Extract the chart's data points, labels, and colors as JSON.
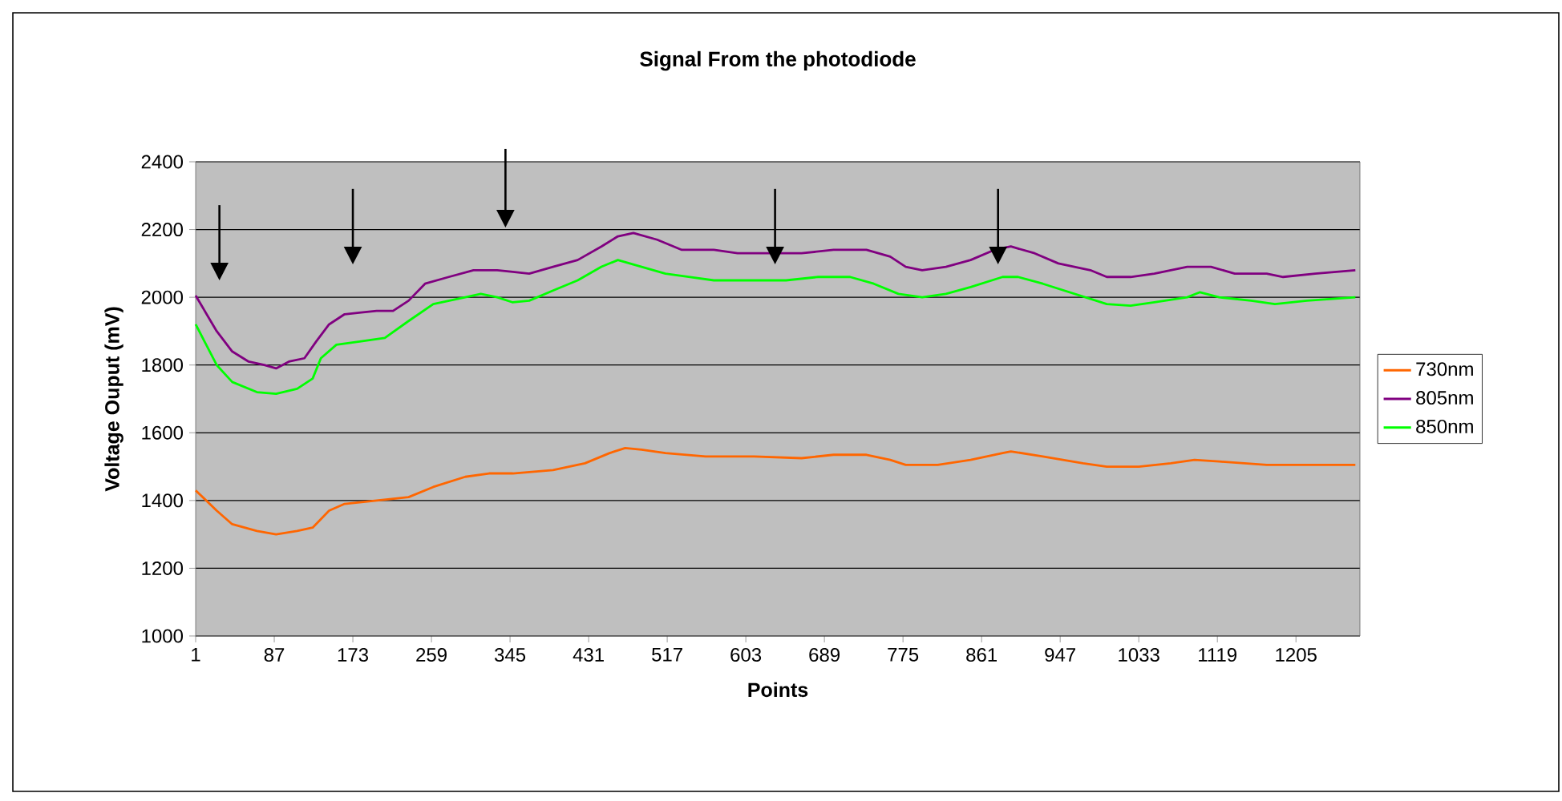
{
  "chart_data": {
    "type": "line",
    "title": "Signal From the photodiode",
    "xlabel": "Points",
    "ylabel": "Voltage Ouput (mV)",
    "xlim": [
      1,
      1275
    ],
    "xticks": [
      1,
      87,
      173,
      259,
      345,
      431,
      517,
      603,
      689,
      775,
      861,
      947,
      1033,
      1119,
      1205
    ],
    "ylim": [
      1000,
      2400
    ],
    "yticks": [
      1000,
      1200,
      1400,
      1600,
      1800,
      2000,
      2200,
      2400
    ],
    "grid": "y",
    "legend": "right",
    "line_style": "solid",
    "series": [
      {
        "name": "730nm",
        "color": "#ff6600",
        "x": [
          1,
          24,
          41,
          68,
          89,
          112,
          129,
          147,
          164,
          199,
          234,
          261,
          296,
          322,
          348,
          392,
          427,
          454,
          471,
          489,
          515,
          559,
          612,
          664,
          699,
          735,
          761,
          778,
          813,
          849,
          884,
          893,
          928,
          972,
          998,
          1033,
          1068,
          1094,
          1121,
          1173,
          1270
        ],
        "values": [
          1430,
          1370,
          1330,
          1310,
          1300,
          1310,
          1320,
          1370,
          1390,
          1400,
          1410,
          1440,
          1470,
          1480,
          1480,
          1490,
          1510,
          1540,
          1555,
          1550,
          1540,
          1530,
          1530,
          1525,
          1535,
          1535,
          1520,
          1505,
          1505,
          1520,
          1540,
          1545,
          1530,
          1510,
          1500,
          1500,
          1510,
          1520,
          1515,
          1505,
          1505
        ]
      },
      {
        "name": "805nm",
        "color": "#800080",
        "x": [
          1,
          24,
          41,
          59,
          76,
          89,
          103,
          120,
          133,
          147,
          164,
          182,
          199,
          217,
          234,
          252,
          278,
          305,
          331,
          348,
          366,
          392,
          419,
          445,
          463,
          480,
          506,
          533,
          568,
          594,
          629,
          664,
          699,
          735,
          761,
          778,
          796,
          822,
          849,
          875,
          893,
          919,
          945,
          980,
          998,
          1024,
          1050,
          1086,
          1112,
          1138,
          1173,
          1191,
          1226,
          1270
        ],
        "values": [
          2005,
          1900,
          1840,
          1810,
          1800,
          1790,
          1810,
          1820,
          1870,
          1920,
          1950,
          1955,
          1960,
          1960,
          1990,
          2040,
          2060,
          2080,
          2080,
          2075,
          2070,
          2090,
          2110,
          2150,
          2180,
          2190,
          2170,
          2140,
          2140,
          2130,
          2130,
          2130,
          2140,
          2140,
          2120,
          2090,
          2080,
          2090,
          2110,
          2140,
          2150,
          2130,
          2100,
          2080,
          2060,
          2060,
          2070,
          2090,
          2090,
          2070,
          2070,
          2060,
          2070,
          2080
        ]
      },
      {
        "name": "850nm",
        "color": "#00ff00",
        "x": [
          1,
          24,
          41,
          68,
          89,
          112,
          129,
          138,
          155,
          182,
          208,
          234,
          261,
          296,
          313,
          331,
          348,
          366,
          392,
          419,
          445,
          463,
          489,
          515,
          542,
          568,
          612,
          647,
          682,
          717,
          743,
          770,
          796,
          822,
          849,
          884,
          901,
          928,
          963,
          998,
          1024,
          1050,
          1086,
          1100,
          1121,
          1156,
          1182,
          1217,
          1270
        ],
        "values": [
          1920,
          1800,
          1750,
          1720,
          1715,
          1730,
          1760,
          1820,
          1860,
          1870,
          1880,
          1930,
          1980,
          2000,
          2010,
          2000,
          1985,
          1990,
          2020,
          2050,
          2090,
          2110,
          2090,
          2070,
          2060,
          2050,
          2050,
          2050,
          2060,
          2060,
          2040,
          2010,
          2000,
          2010,
          2030,
          2060,
          2060,
          2040,
          2010,
          1980,
          1975,
          1985,
          2000,
          2015,
          2000,
          1990,
          1980,
          1990,
          2000
        ]
      }
    ]
  }
}
